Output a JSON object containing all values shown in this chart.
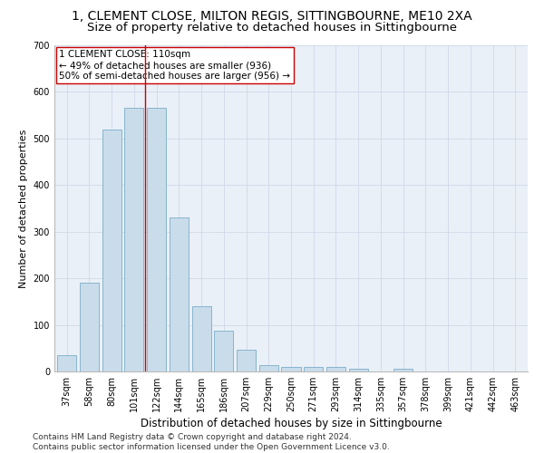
{
  "title": "1, CLEMENT CLOSE, MILTON REGIS, SITTINGBOURNE, ME10 2XA",
  "subtitle": "Size of property relative to detached houses in Sittingbourne",
  "xlabel": "Distribution of detached houses by size in Sittingbourne",
  "ylabel": "Number of detached properties",
  "categories": [
    "37sqm",
    "58sqm",
    "80sqm",
    "101sqm",
    "122sqm",
    "144sqm",
    "165sqm",
    "186sqm",
    "207sqm",
    "229sqm",
    "250sqm",
    "271sqm",
    "293sqm",
    "314sqm",
    "335sqm",
    "357sqm",
    "378sqm",
    "399sqm",
    "421sqm",
    "442sqm",
    "463sqm"
  ],
  "values": [
    35,
    190,
    520,
    565,
    565,
    330,
    140,
    88,
    47,
    13,
    10,
    10,
    10,
    5,
    0,
    5,
    0,
    0,
    0,
    0,
    0
  ],
  "bar_color": "#c9dcea",
  "bar_edge_color": "#7aaec8",
  "vline_x_index": 3.5,
  "vline_color": "#cc0000",
  "annotation_text": "1 CLEMENT CLOSE: 110sqm\n← 49% of detached houses are smaller (936)\n50% of semi-detached houses are larger (956) →",
  "annotation_box_color": "#ffffff",
  "annotation_box_edge": "#cc0000",
  "ylim": [
    0,
    700
  ],
  "yticks": [
    0,
    100,
    200,
    300,
    400,
    500,
    600,
    700
  ],
  "grid_color": "#d0d8e8",
  "bg_color": "#eaf0f7",
  "footer": "Contains HM Land Registry data © Crown copyright and database right 2024.\nContains public sector information licensed under the Open Government Licence v3.0.",
  "title_fontsize": 10,
  "subtitle_fontsize": 9.5,
  "xlabel_fontsize": 8.5,
  "ylabel_fontsize": 8,
  "tick_fontsize": 7,
  "annotation_fontsize": 7.5,
  "footer_fontsize": 6.5
}
